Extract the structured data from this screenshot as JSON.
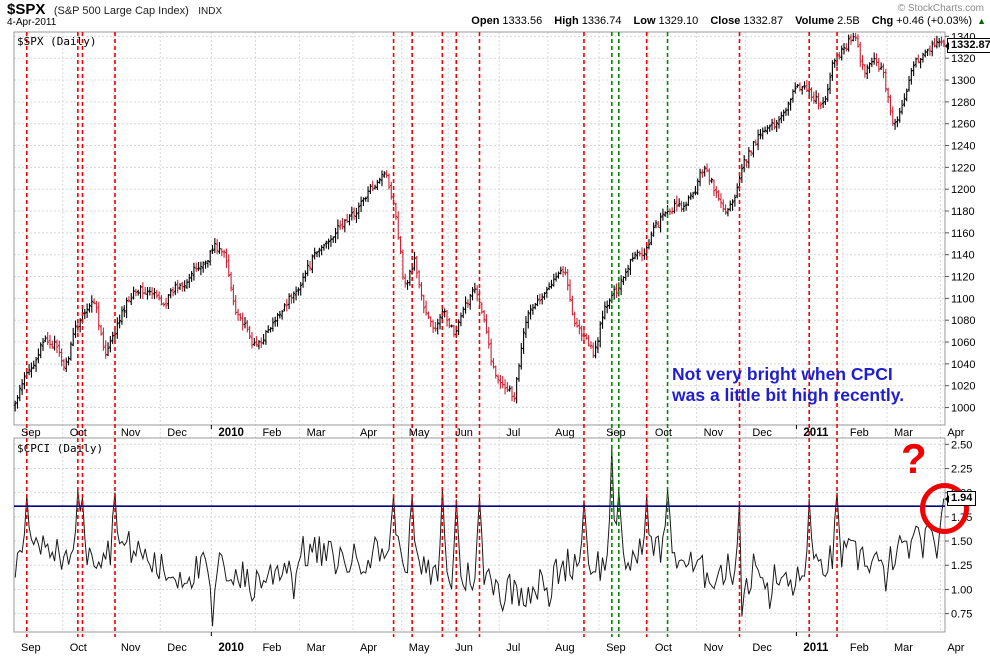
{
  "header": {
    "symbol": "$SPX",
    "symbol_desc": "(S&P 500 Large Cap Index)",
    "exchange": "INDX",
    "copyright": "© StockCharts.com",
    "date": "4-Apr-2011",
    "quote": {
      "open_label": "Open",
      "open": "1333.56",
      "high_label": "High",
      "high": "1336.74",
      "low_label": "Low",
      "low": "1329.10",
      "close_label": "Close",
      "close": "1332.87",
      "volume_label": "Volume",
      "volume": "2.5B",
      "chg_label": "Chg",
      "chg": "+0.46 (+0.03%)",
      "chg_up_icon": "▲"
    }
  },
  "colors": {
    "up_bar": "#000000",
    "down_bar": "#cc2233",
    "cpci_line": "#1a1a1a",
    "event_red": "#f00000",
    "event_green": "#008800",
    "threshold_blue": "#000080",
    "grid": "#d8d8d8",
    "panel_border": "#999999",
    "annotation_blue": "#1f1fd0",
    "annotation_red": "#f00000"
  },
  "months": [
    {
      "label": "Sep",
      "days": 21,
      "bold": false
    },
    {
      "label": "Oct",
      "days": 22,
      "bold": false
    },
    {
      "label": "Nov",
      "days": 20,
      "bold": false
    },
    {
      "label": "Dec",
      "days": 22,
      "bold": false
    },
    {
      "label": "2010",
      "days": 19,
      "bold": true
    },
    {
      "label": "Feb",
      "days": 19,
      "bold": false
    },
    {
      "label": "Mar",
      "days": 23,
      "bold": false
    },
    {
      "label": "Apr",
      "days": 21,
      "bold": false
    },
    {
      "label": "May",
      "days": 20,
      "bold": false
    },
    {
      "label": "Jun",
      "days": 22,
      "bold": false
    },
    {
      "label": "Jul",
      "days": 21,
      "bold": false
    },
    {
      "label": "Aug",
      "days": 22,
      "bold": false
    },
    {
      "label": "Sep",
      "days": 21,
      "bold": false
    },
    {
      "label": "Oct",
      "days": 21,
      "bold": false
    },
    {
      "label": "Nov",
      "days": 21,
      "bold": false
    },
    {
      "label": "Dec",
      "days": 22,
      "bold": false
    },
    {
      "label": "2011",
      "days": 20,
      "bold": true
    },
    {
      "label": "Feb",
      "days": 19,
      "bold": false
    },
    {
      "label": "Mar",
      "days": 23,
      "bold": false
    },
    {
      "label": "Apr",
      "days": 2,
      "bold": false
    }
  ],
  "event_lines": {
    "red_day_indices": [
      5,
      27,
      29,
      43,
      163,
      171,
      184,
      190,
      200,
      245,
      272,
      312,
      342,
      354
    ],
    "green_day_indices": [
      257,
      260,
      281
    ]
  },
  "chart_data": [
    {
      "type": "ohlc",
      "title": "$SPX (Daily)",
      "trading_days": 401,
      "ylim": [
        984,
        1344
      ],
      "ytick_min": 1000,
      "ytick_max": 1340,
      "ytick_step": 20,
      "last_close": 1332.87,
      "last_value_label": "1332.87",
      "weekly_closes": [
        1003,
        1028,
        1044,
        1062,
        1057,
        1036,
        1071,
        1090,
        1098,
        1046,
        1069,
        1093,
        1109,
        1106,
        1103,
        1095,
        1110,
        1115,
        1126,
        1133,
        1148,
        1140,
        1092,
        1074,
        1055,
        1066,
        1078,
        1095,
        1104,
        1122,
        1139,
        1150,
        1160,
        1170,
        1178,
        1192,
        1205,
        1217,
        1186,
        1110,
        1135,
        1088,
        1071,
        1089,
        1065,
        1091,
        1113,
        1077,
        1030,
        1022,
        1010,
        1078,
        1095,
        1102,
        1122,
        1127,
        1079,
        1064,
        1049,
        1090,
        1105,
        1122,
        1142,
        1141,
        1165,
        1176,
        1184,
        1183,
        1197,
        1223,
        1200,
        1180,
        1189,
        1224,
        1241,
        1257,
        1258,
        1272,
        1290,
        1296,
        1283,
        1276,
        1319,
        1329,
        1343,
        1306,
        1321,
        1304,
        1257,
        1279,
        1314,
        1326,
        1332,
        1333
      ]
    },
    {
      "type": "line",
      "title": "$CPCI (Daily)",
      "trading_days": 401,
      "ylim": [
        0.56,
        2.565
      ],
      "ytick_min": 0.75,
      "ytick_max": 2.5,
      "ytick_step": 0.25,
      "last_value": 1.94,
      "last_value_label": "1.94",
      "threshold_value": 1.86,
      "base_level": 1.24,
      "noise_amplitude": 0.36,
      "anchors": [
        [
          5,
          1.98
        ],
        [
          27,
          2.02
        ],
        [
          29,
          1.95
        ],
        [
          43,
          2.0
        ],
        [
          85,
          0.62
        ],
        [
          102,
          0.88
        ],
        [
          120,
          0.9
        ],
        [
          163,
          1.97
        ],
        [
          171,
          1.96
        ],
        [
          184,
          2.05
        ],
        [
          190,
          1.93
        ],
        [
          200,
          1.95
        ],
        [
          210,
          0.78
        ],
        [
          230,
          0.82
        ],
        [
          245,
          1.92
        ],
        [
          257,
          2.46
        ],
        [
          260,
          2.02
        ],
        [
          272,
          1.97
        ],
        [
          281,
          2.03
        ],
        [
          312,
          1.91
        ],
        [
          313,
          0.72
        ],
        [
          316,
          0.95
        ],
        [
          325,
          0.8
        ],
        [
          342,
          1.94
        ],
        [
          354,
          2.0
        ],
        [
          375,
          0.98
        ],
        [
          397,
          1.32
        ],
        [
          398,
          1.55
        ],
        [
          399,
          1.78
        ],
        [
          400,
          1.94
        ]
      ]
    }
  ],
  "annotations": {
    "blue_note_line1": "Not very bright when CPCI",
    "blue_note_line2": "was a little bit high recently.",
    "question_mark": "?"
  }
}
